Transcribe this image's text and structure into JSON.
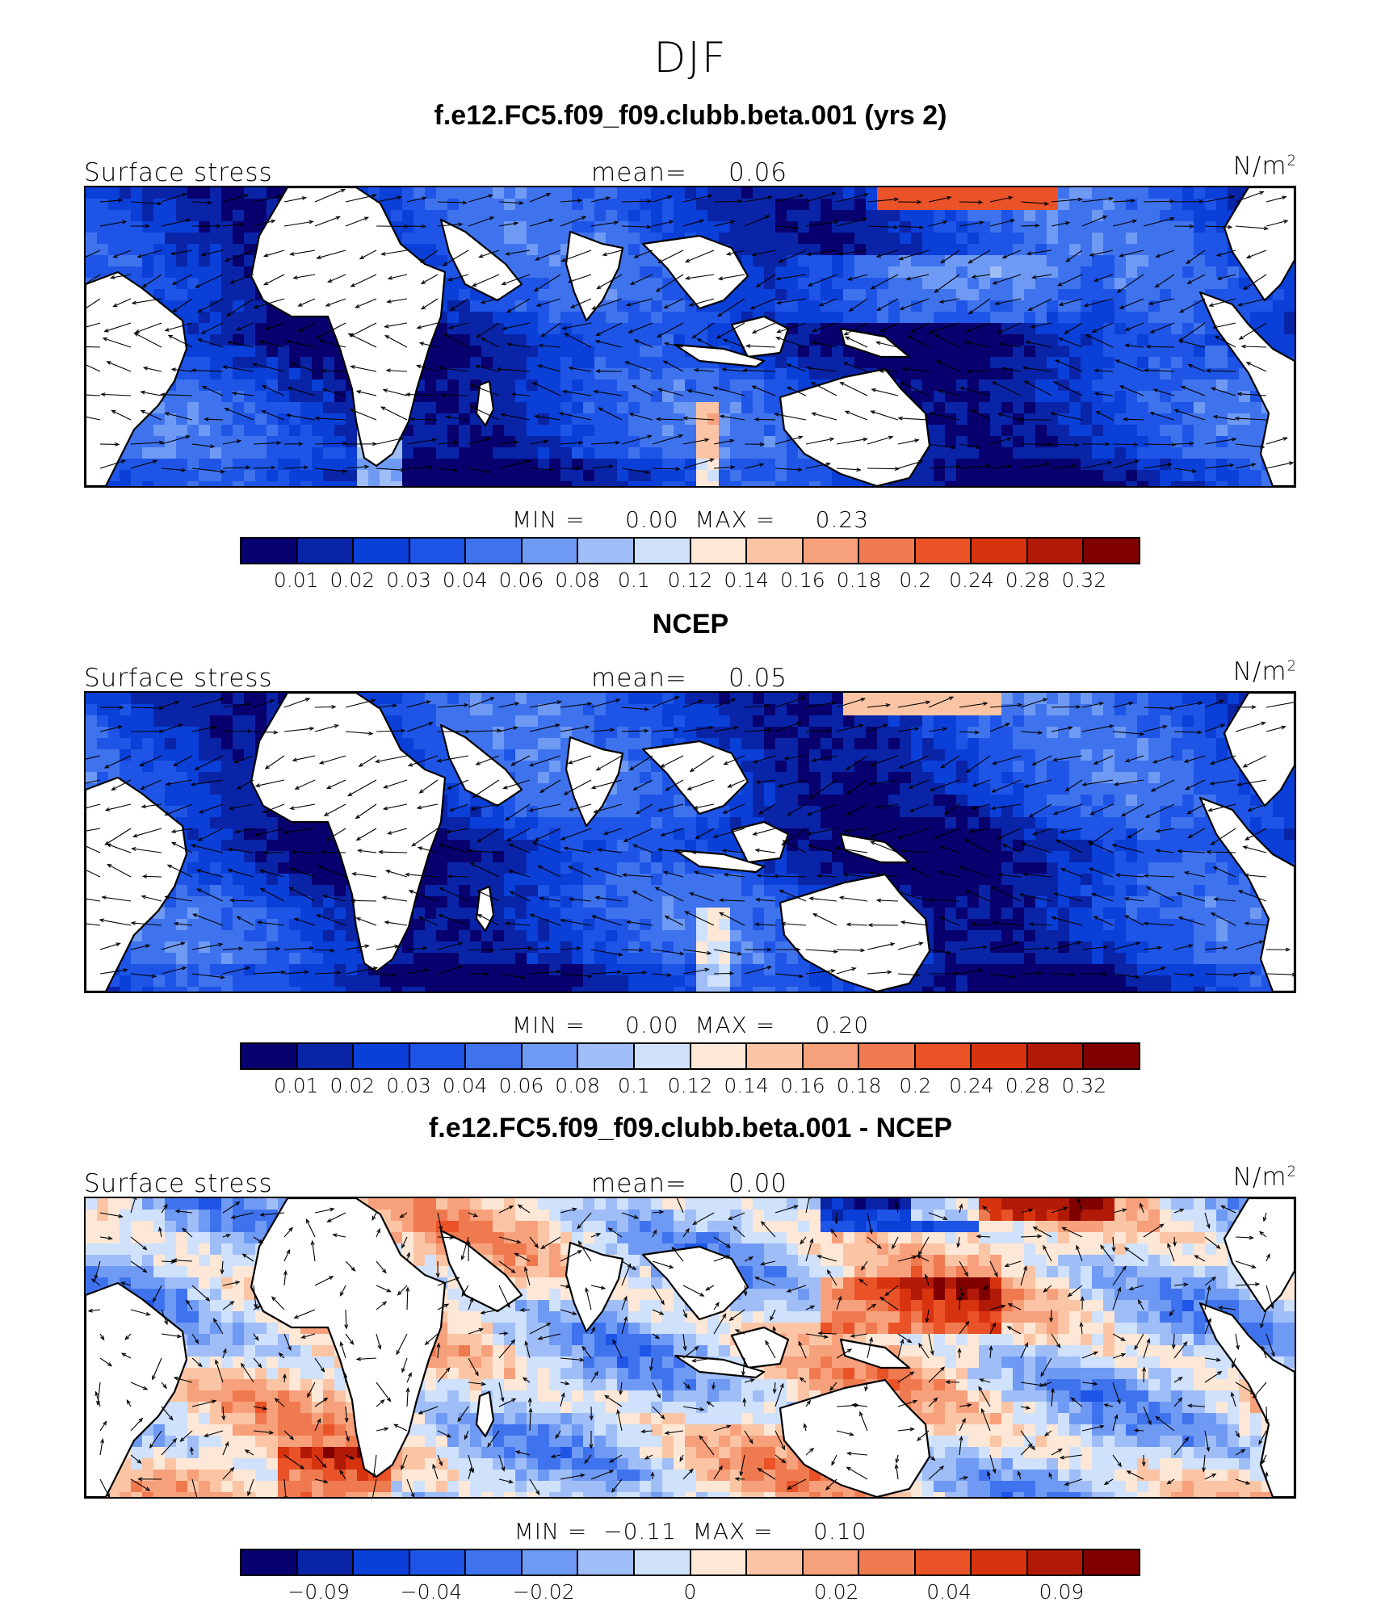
{
  "figure": {
    "season": "DJF"
  },
  "palettes": {
    "abs": [
      "#08006f",
      "#0a24a8",
      "#0a3fd8",
      "#1e55e6",
      "#3f73ee",
      "#6f9af4",
      "#9fbdf7",
      "#cfe1fb",
      "#fde7d6",
      "#fbc5a5",
      "#f7a07c",
      "#f07a50",
      "#ea5228",
      "#d8330f",
      "#b21a08",
      "#800000"
    ],
    "diff": [
      "#08006f",
      "#0a24a8",
      "#0a3fd8",
      "#1e55e6",
      "#3f73ee",
      "#6f9af4",
      "#9fbdf7",
      "#cfe1fb",
      "#fde7d6",
      "#fbc5a5",
      "#f7a07c",
      "#f07a50",
      "#ea5228",
      "#d8330f",
      "#b21a08",
      "#800000"
    ],
    "land": "#ffffff",
    "coast": "#000000"
  },
  "panels": [
    {
      "title": "f.e12.FC5.f09_f09.clubb.beta.001 (yrs 2)",
      "variable": "Surface stress",
      "mean_label": "mean=",
      "mean_value": "0.06",
      "unit": "N/m",
      "unit_sup": "2",
      "minmax": "MIN =     0.00  MAX =     0.23",
      "colorbar_ticks": [
        "0.01",
        "0.02",
        "0.03",
        "0.04",
        "0.06",
        "0.08",
        "0.1",
        "0.12",
        "0.14",
        "0.16",
        "0.18",
        "0.2",
        "0.24",
        "0.28",
        "0.32"
      ]
    },
    {
      "title": "NCEP",
      "variable": "Surface stress",
      "mean_label": "mean=",
      "mean_value": "0.05",
      "unit": "N/m",
      "unit_sup": "2",
      "minmax": "MIN =     0.00  MAX =     0.20",
      "colorbar_ticks": [
        "0.01",
        "0.02",
        "0.03",
        "0.04",
        "0.06",
        "0.08",
        "0.1",
        "0.12",
        "0.14",
        "0.16",
        "0.18",
        "0.2",
        "0.24",
        "0.28",
        "0.32"
      ]
    },
    {
      "title": "f.e12.FC5.f09_f09.clubb.beta.001 - NCEP",
      "variable": "Surface stress",
      "mean_label": "mean=",
      "mean_value": "0.00",
      "unit": "N/m",
      "unit_sup": "2",
      "minmax": "MIN =  −0.11  MAX =     0.10",
      "colorbar_ticks": [
        "−0.09",
        "−0.04",
        "−0.02",
        "0",
        "0.02",
        "0.04",
        "0.09"
      ]
    }
  ]
}
